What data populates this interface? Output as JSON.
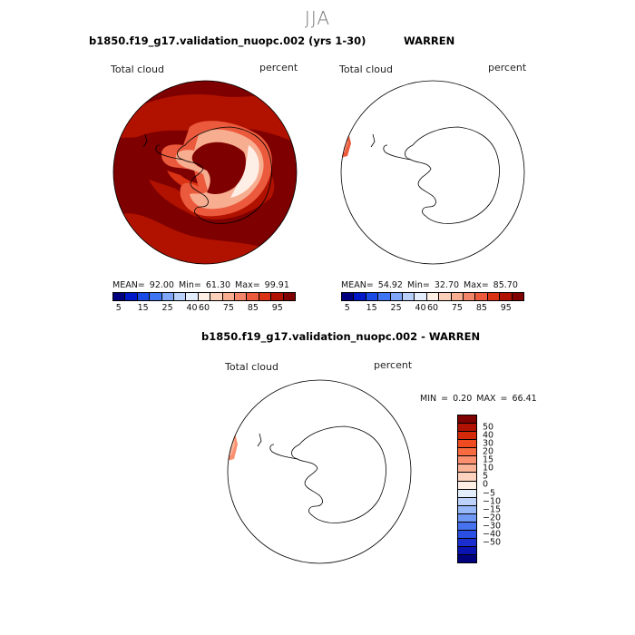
{
  "figure_title": "JJA",
  "panels": [
    {
      "title": "b1850.f19_g17.validation_nuopc.002 (yrs 1-30)",
      "field_label": "Total cloud",
      "units_label": "percent",
      "stats": "MEAN=  92.00  Min=  61.30  Max=  99.91"
    },
    {
      "title": "WARREN",
      "field_label": "Total cloud",
      "units_label": "percent",
      "stats": "MEAN=  54.92  Min=  32.70  Max=  85.70"
    },
    {
      "title": "b1850.f19_g17.validation_nuopc.002 - WARREN",
      "field_label": "Total cloud",
      "units_label": "percent",
      "stats": "MIN =   0.20 MAX =  66.41"
    }
  ],
  "colorbar_main": {
    "colors": [
      "#00007f",
      "#0019c8",
      "#1a4ae6",
      "#3f74f2",
      "#7fa6f8",
      "#b9d0fb",
      "#e3edfb",
      "#fdeee6",
      "#fbd0bb",
      "#f7ad90",
      "#f3866a",
      "#ec5a3d",
      "#d93214",
      "#b11200",
      "#7f0000"
    ],
    "tick_labels": [
      "5",
      "15",
      "25",
      "40",
      "60",
      "75",
      "85",
      "95"
    ]
  },
  "colorbar_diff": {
    "colors_top_to_bottom": [
      "#7f0000",
      "#b11200",
      "#d52a0a",
      "#ef4a20",
      "#f86a40",
      "#fa9070",
      "#fbb398",
      "#fdd3bf",
      "#fdeee6",
      "#e3edfb",
      "#bcd2fb",
      "#97b8f9",
      "#6f98f4",
      "#4772ee",
      "#2a4fe3",
      "#1a2ed0",
      "#0a12b0",
      "#00007f"
    ],
    "tick_labels_top_to_bottom": [
      "50",
      "40",
      "30",
      "20",
      "15",
      "10",
      "5",
      "0",
      "−5",
      "−10",
      "−15",
      "−20",
      "−30",
      "−40",
      "−50"
    ]
  }
}
